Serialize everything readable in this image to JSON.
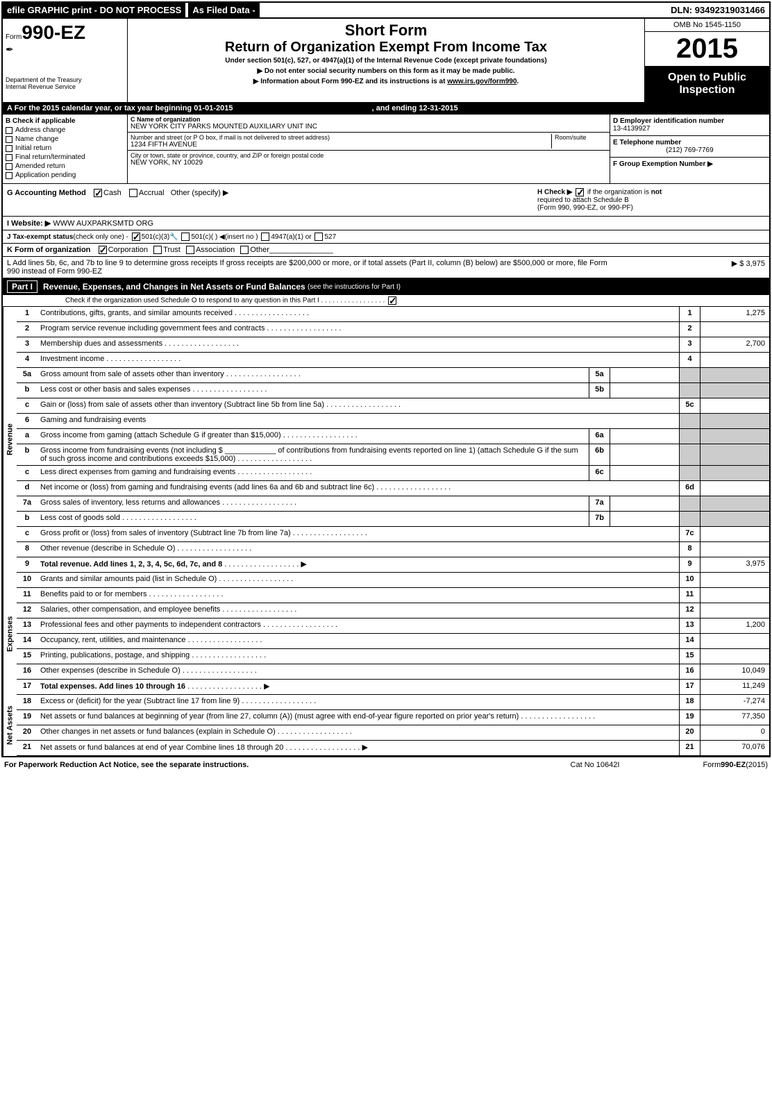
{
  "topbar": {
    "left": "efile GRAPHIC print - DO NOT PROCESS",
    "mid": "As Filed Data -",
    "dln": "DLN: 93492319031466"
  },
  "header": {
    "form_prefix": "Form",
    "form_num": "990-EZ",
    "dept1": "Department of the Treasury",
    "dept2": "Internal Revenue Service",
    "short_form": "Short Form",
    "title": "Return of Organization Exempt From Income Tax",
    "under": "Under section 501(c), 527, or 4947(a)(1) of the Internal Revenue Code (except private foundations)",
    "notice1": "▶ Do not enter social security numbers on this form as it may be made public.",
    "notice2a": "▶ Information about Form 990-EZ and its instructions is at ",
    "notice2b": "www.irs.gov/form990",
    "notice2c": ".",
    "omb": "OMB No 1545-1150",
    "year": "2015",
    "inspect1": "Open to Public",
    "inspect2": "Inspection"
  },
  "row_a": {
    "label": "A  For the 2015 calendar year, or tax year beginning 01-01-2015",
    "ending": ", and ending 12-31-2015"
  },
  "section_b": {
    "title": "B  Check if applicable",
    "items": [
      "Address change",
      "Name change",
      "Initial return",
      "Final return/terminated",
      "Amended return",
      "Application pending"
    ]
  },
  "section_c": {
    "name_lbl": "C Name of organization",
    "name": "NEW YORK CITY PARKS MOUNTED AUXILIARY UNIT INC",
    "addr_lbl": "Number and street (or P O box, if mail is not delivered to street address)",
    "room_lbl": "Room/suite",
    "addr": "1234 FIFTH AVENUE",
    "city_lbl": "City or town, state or province, country, and ZIP or foreign postal code",
    "city": "NEW YORK, NY 10029"
  },
  "section_d": {
    "ein_lbl": "D Employer identification number",
    "ein": "13-4139927",
    "tel_lbl": "E Telephone number",
    "tel": "(212) 769-7769",
    "grp_lbl": "F Group Exemption Number  ▶"
  },
  "row_g": {
    "label": "G Accounting Method",
    "cash": "Cash",
    "accrual": "Accrual",
    "other": "Other (specify) ▶"
  },
  "row_h": {
    "text1": "H   Check ▶",
    "text2": "if the organization is ",
    "not": "not",
    "text3": "required to attach Schedule B",
    "text4": "(Form 990, 990-EZ, or 990-PF)"
  },
  "row_i": {
    "label": "I Website: ▶",
    "value": "WWW AUXPARKSMTD ORG"
  },
  "row_j": {
    "label": "J Tax-exempt status",
    "sub": "(check only one) -",
    "opt1": "501(c)(3)",
    "opt2": "501(c)(  ) ◀(insert no )",
    "opt3": "4947(a)(1) or",
    "opt4": "527"
  },
  "row_k": {
    "label": "K Form of organization",
    "opts": [
      "Corporation",
      "Trust",
      "Association",
      "Other"
    ]
  },
  "row_l": {
    "text": "L Add lines 5b, 6c, and 7b to line 9 to determine gross receipts If gross receipts are $200,000 or more, or if total assets (Part II, column (B) below) are $500,000 or more, file Form 990 instead of Form 990-EZ",
    "arrow": "▶ $ 3,975"
  },
  "part1": {
    "label": "Part I",
    "title": "Revenue, Expenses, and Changes in Net Assets or Fund Balances",
    "hint": "(see the instructions for Part I)",
    "sub": "Check if the organization used Schedule O to respond to any question in this Part I"
  },
  "lines": {
    "1": {
      "n": "1",
      "d": "Contributions, gifts, grants, and similar amounts received",
      "r": "1",
      "v": "1,275"
    },
    "2": {
      "n": "2",
      "d": "Program service revenue including government fees and contracts",
      "r": "2",
      "v": ""
    },
    "3": {
      "n": "3",
      "d": "Membership dues and assessments",
      "r": "3",
      "v": "2,700"
    },
    "4": {
      "n": "4",
      "d": "Investment income",
      "r": "4",
      "v": ""
    },
    "5a": {
      "n": "5a",
      "d": "Gross amount from sale of assets other than inventory",
      "s": "5a"
    },
    "5b": {
      "n": "b",
      "d": "Less cost or other basis and sales expenses",
      "s": "5b"
    },
    "5c": {
      "n": "c",
      "d": "Gain or (loss) from sale of assets other than inventory (Subtract line 5b from line 5a)",
      "r": "5c",
      "v": ""
    },
    "6": {
      "n": "6",
      "d": "Gaming and fundraising events"
    },
    "6a": {
      "n": "a",
      "d": "Gross income from gaming (attach Schedule G if greater than $15,000)",
      "s": "6a"
    },
    "6b": {
      "n": "b",
      "d": "Gross income from fundraising events (not including $ ____________ of contributions from fundraising events reported on line 1) (attach Schedule G if the sum of such gross income and contributions exceeds $15,000)",
      "s": "6b"
    },
    "6c": {
      "n": "c",
      "d": "Less direct expenses from gaming and fundraising events",
      "s": "6c"
    },
    "6d": {
      "n": "d",
      "d": "Net income or (loss) from gaming and fundraising events (add lines 6a and 6b and subtract line 6c)",
      "r": "6d",
      "v": ""
    },
    "7a": {
      "n": "7a",
      "d": "Gross sales of inventory, less returns and allowances",
      "s": "7a"
    },
    "7b": {
      "n": "b",
      "d": "Less cost of goods sold",
      "s": "7b"
    },
    "7c": {
      "n": "c",
      "d": "Gross profit or (loss) from sales of inventory (Subtract line 7b from line 7a)",
      "r": "7c",
      "v": ""
    },
    "8": {
      "n": "8",
      "d": "Other revenue (describe in Schedule O)",
      "r": "8",
      "v": ""
    },
    "9": {
      "n": "9",
      "d": "Total revenue. Add lines 1, 2, 3, 4, 5c, 6d, 7c, and 8",
      "r": "9",
      "v": "3,975",
      "bold": true,
      "arrow": true
    },
    "10": {
      "n": "10",
      "d": "Grants and similar amounts paid (list in Schedule O)",
      "r": "10",
      "v": ""
    },
    "11": {
      "n": "11",
      "d": "Benefits paid to or for members",
      "r": "11",
      "v": ""
    },
    "12": {
      "n": "12",
      "d": "Salaries, other compensation, and employee benefits",
      "r": "12",
      "v": ""
    },
    "13": {
      "n": "13",
      "d": "Professional fees and other payments to independent contractors",
      "r": "13",
      "v": "1,200"
    },
    "14": {
      "n": "14",
      "d": "Occupancy, rent, utilities, and maintenance",
      "r": "14",
      "v": ""
    },
    "15": {
      "n": "15",
      "d": "Printing, publications, postage, and shipping",
      "r": "15",
      "v": ""
    },
    "16": {
      "n": "16",
      "d": "Other expenses (describe in Schedule O)",
      "r": "16",
      "v": "10,049"
    },
    "17": {
      "n": "17",
      "d": "Total expenses. Add lines 10 through 16",
      "r": "17",
      "v": "11,249",
      "bold": true,
      "arrow": true
    },
    "18": {
      "n": "18",
      "d": "Excess or (deficit) for the year (Subtract line 17 from line 9)",
      "r": "18",
      "v": "-7,274"
    },
    "19": {
      "n": "19",
      "d": "Net assets or fund balances at beginning of year (from line 27, column (A)) (must agree with end-of-year figure reported on prior year's return)",
      "r": "19",
      "v": "77,350"
    },
    "20": {
      "n": "20",
      "d": "Other changes in net assets or fund balances (explain in Schedule O)",
      "r": "20",
      "v": "0"
    },
    "21": {
      "n": "21",
      "d": "Net assets or fund balances at end of year Combine lines 18 through 20",
      "r": "21",
      "v": "70,076",
      "arrow": true
    }
  },
  "side_labels": {
    "rev": "Revenue",
    "exp": "Expenses",
    "net": "Net Assets"
  },
  "footer": {
    "l": "For Paperwork Reduction Act Notice, see the separate instructions.",
    "m": "Cat No 10642I",
    "r": "Form 990-EZ (2015)"
  }
}
